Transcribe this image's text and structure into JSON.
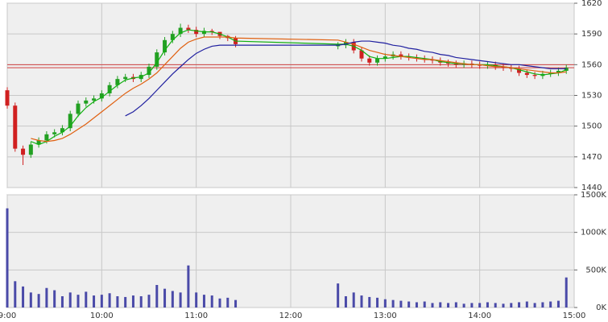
{
  "chart_data": {
    "type": "candlestick",
    "x": [
      0,
      5,
      10,
      15,
      20,
      25,
      30,
      35,
      40,
      45,
      50,
      55,
      60,
      65,
      70,
      75,
      80,
      85,
      90,
      95,
      100,
      105,
      110,
      115,
      120,
      125,
      130,
      135,
      140,
      145,
      210,
      215,
      220,
      225,
      230,
      235,
      240,
      245,
      250,
      255,
      260,
      265,
      270,
      275,
      280,
      285,
      290,
      295,
      300,
      305,
      310,
      315,
      320,
      325,
      330,
      335,
      340,
      345,
      350,
      355
    ],
    "open": [
      1535,
      1520,
      1478,
      1472,
      1482,
      1486,
      1492,
      1494,
      1498,
      1512,
      1522,
      1525,
      1527,
      1532,
      1540,
      1546,
      1548,
      1546,
      1550,
      1558,
      1572,
      1584,
      1590,
      1596,
      1594,
      1590,
      1593,
      1592,
      1588,
      1586,
      1578,
      1579,
      1582,
      1574,
      1566,
      1562,
      1566,
      1568,
      1570,
      1568,
      1567,
      1566,
      1565,
      1564,
      1562,
      1561,
      1560,
      1561,
      1560,
      1559,
      1560,
      1558,
      1557,
      1556,
      1552,
      1550,
      1549,
      1551,
      1552,
      1554
    ],
    "high": [
      1538,
      1523,
      1481,
      1485,
      1489,
      1495,
      1497,
      1501,
      1515,
      1525,
      1528,
      1530,
      1535,
      1543,
      1549,
      1551,
      1551,
      1553,
      1561,
      1575,
      1587,
      1593,
      1600,
      1599,
      1597,
      1596,
      1595,
      1591,
      1589,
      1588,
      1582,
      1585,
      1585,
      1577,
      1569,
      1569,
      1571,
      1573,
      1573,
      1571,
      1570,
      1569,
      1568,
      1567,
      1565,
      1564,
      1564,
      1564,
      1563,
      1563,
      1563,
      1561,
      1560,
      1559,
      1555,
      1553,
      1554,
      1555,
      1557,
      1560
    ],
    "low": [
      1517,
      1475,
      1462,
      1469,
      1479,
      1483,
      1489,
      1491,
      1495,
      1509,
      1519,
      1522,
      1524,
      1529,
      1537,
      1543,
      1543,
      1543,
      1547,
      1555,
      1569,
      1581,
      1587,
      1591,
      1587,
      1587,
      1589,
      1585,
      1583,
      1577,
      1575,
      1576,
      1571,
      1563,
      1559,
      1559,
      1563,
      1565,
      1565,
      1564,
      1563,
      1562,
      1561,
      1559,
      1558,
      1557,
      1557,
      1557,
      1556,
      1556,
      1555,
      1554,
      1553,
      1549,
      1547,
      1546,
      1546,
      1548,
      1549,
      1551
    ],
    "close": [
      1520,
      1478,
      1472,
      1482,
      1486,
      1492,
      1494,
      1498,
      1512,
      1522,
      1525,
      1527,
      1532,
      1540,
      1546,
      1548,
      1546,
      1550,
      1558,
      1572,
      1584,
      1590,
      1596,
      1594,
      1590,
      1593,
      1592,
      1588,
      1586,
      1580,
      1579,
      1582,
      1574,
      1566,
      1562,
      1566,
      1568,
      1570,
      1568,
      1567,
      1566,
      1565,
      1564,
      1562,
      1561,
      1560,
      1561,
      1560,
      1559,
      1560,
      1558,
      1557,
      1556,
      1552,
      1550,
      1549,
      1551,
      1552,
      1554,
      1557
    ],
    "up_color": "#22a022",
    "down_color": "#d02020",
    "moving_averages": [
      {
        "color": "#10b010",
        "values": [
          null,
          null,
          null,
          1485,
          1482,
          1485,
          1490,
          1494,
          1500,
          1510,
          1518,
          1524,
          1528,
          1534,
          1540,
          1545,
          1547,
          1548,
          1552,
          1562,
          1574,
          1584,
          1591,
          1594,
          1593,
          1592,
          1592,
          1590,
          1587,
          1583,
          1580,
          1580,
          1578,
          1574,
          1568,
          1566,
          1566,
          1567,
          1568,
          1568,
          1567,
          1566,
          1565,
          1563,
          1562,
          1561,
          1561,
          1560,
          1560,
          1560,
          1559,
          1558,
          1557,
          1555,
          1553,
          1551,
          1550,
          1551,
          1552,
          1555
        ]
      },
      {
        "color": "#e06010",
        "values": [
          null,
          null,
          null,
          1488,
          1486,
          1485,
          1486,
          1488,
          1492,
          1497,
          1502,
          1508,
          1514,
          1520,
          1526,
          1532,
          1537,
          1541,
          1546,
          1552,
          1560,
          1568,
          1576,
          1582,
          1585,
          1587,
          1587,
          1587,
          1587,
          1586,
          1584,
          1582,
          1580,
          1577,
          1574,
          1572,
          1570,
          1569,
          1568,
          1567,
          1566,
          1565,
          1565,
          1564,
          1563,
          1562,
          1561,
          1560,
          1560,
          1559,
          1558,
          1558,
          1557,
          1556,
          1555,
          1554,
          1553,
          1552,
          1552,
          1553
        ]
      },
      {
        "color": "#2020a0",
        "values": [
          null,
          null,
          null,
          null,
          null,
          null,
          null,
          null,
          null,
          null,
          null,
          null,
          null,
          null,
          null,
          1510,
          1514,
          1520,
          1527,
          1535,
          1543,
          1551,
          1558,
          1565,
          1571,
          1575,
          1578,
          1579,
          1579,
          1579,
          1579,
          1580,
          1582,
          1583,
          1583,
          1582,
          1581,
          1579,
          1578,
          1576,
          1575,
          1573,
          1572,
          1570,
          1569,
          1567,
          1566,
          1565,
          1564,
          1563,
          1562,
          1561,
          1560,
          1560,
          1559,
          1558,
          1557,
          1556,
          1556,
          1556
        ]
      }
    ],
    "hlines": [
      1560,
      1557
    ],
    "hline_color": "#d04040",
    "xlim": [
      0,
      360
    ],
    "xticks": [
      {
        "value": 0,
        "label": "9:00"
      },
      {
        "value": 60,
        "label": "10:00"
      },
      {
        "value": 120,
        "label": "11:00"
      },
      {
        "value": 180,
        "label": "12:00"
      },
      {
        "value": 240,
        "label": "13:00"
      },
      {
        "value": 300,
        "label": "14:00"
      },
      {
        "value": 360,
        "label": "15:00"
      }
    ],
    "ylim": [
      1440,
      1620
    ],
    "yticks": [
      1440,
      1470,
      1500,
      1530,
      1560,
      1590,
      1620
    ],
    "volume": {
      "color": "#4a4aa8",
      "values": [
        1320,
        350,
        280,
        200,
        180,
        260,
        230,
        150,
        200,
        170,
        210,
        160,
        170,
        190,
        150,
        140,
        160,
        150,
        170,
        300,
        250,
        220,
        200,
        560,
        200,
        170,
        160,
        120,
        130,
        100,
        320,
        150,
        200,
        160,
        140,
        130,
        110,
        100,
        90,
        80,
        70,
        80,
        60,
        70,
        60,
        70,
        50,
        60,
        60,
        70,
        60,
        50,
        60,
        70,
        80,
        60,
        70,
        80,
        90,
        400
      ],
      "ylim": [
        0,
        1500
      ],
      "yticks": [
        {
          "value": 0,
          "label": "0K"
        },
        {
          "value": 500,
          "label": "500K"
        },
        {
          "value": 1000,
          "label": "1000K"
        },
        {
          "value": 1500,
          "label": "1500K"
        }
      ]
    },
    "grid": true
  }
}
